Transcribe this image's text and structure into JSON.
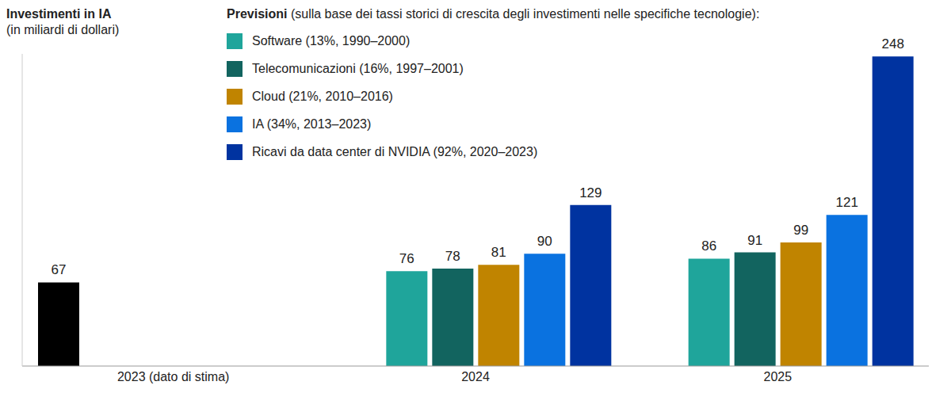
{
  "chart_data": {
    "type": "bar",
    "ylabel": "Investimenti in IA",
    "ylabel_note": "(in miliardi di dollari)",
    "legend_title": "Previsioni",
    "legend_subtitle": "(sulla base dei tassi storici di crescita degli investimenti nelle specifiche tecnologie):",
    "categories": [
      "2023 (dato di stima)",
      "2024",
      "2025"
    ],
    "series": [
      {
        "color": "#000000",
        "values": [
          67,
          null,
          null
        ]
      },
      {
        "name": "Software (13%, 1990–2000)",
        "color": "#1fa59b",
        "values": [
          null,
          76,
          86
        ]
      },
      {
        "name": "Telecomunicazioni (16%, 1997–2001)",
        "color": "#12645f",
        "values": [
          null,
          78,
          91
        ]
      },
      {
        "name": "Cloud (21%, 2010–2016)",
        "color": "#c08400",
        "values": [
          null,
          81,
          99
        ]
      },
      {
        "name": "IA (34%, 2013–2023)",
        "color": "#0a72e0",
        "values": [
          null,
          90,
          121
        ]
      },
      {
        "name": "Ricavi da data center di NVIDIA (92%, 2020–2023)",
        "color": "#0033a0",
        "values": [
          null,
          129,
          248
        ]
      }
    ],
    "ylim": [
      0,
      250
    ],
    "data_labels": true,
    "tick_labels": "x",
    "legend": "top"
  }
}
